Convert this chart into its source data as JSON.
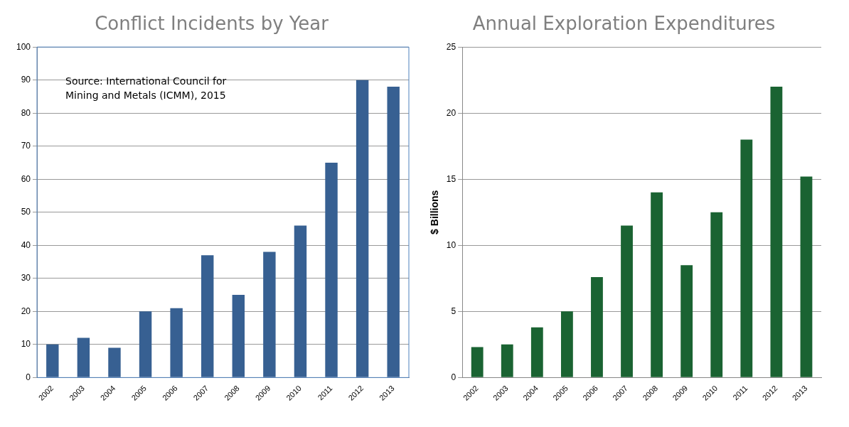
{
  "chart_data": [
    {
      "type": "bar",
      "title": "Conflict Incidents by Year",
      "categories": [
        "2002",
        "2003",
        "2004",
        "2005",
        "2006",
        "2007",
        "2008",
        "2009",
        "2010",
        "2011",
        "2012",
        "2013"
      ],
      "series": [
        {
          "color": "#376092",
          "values": [
            10,
            12,
            9,
            20,
            21,
            37,
            25,
            38,
            46,
            65,
            90,
            88
          ]
        }
      ],
      "ylim": [
        0,
        100
      ],
      "yticks": [
        0,
        10,
        20,
        30,
        40,
        50,
        60,
        70,
        80,
        90,
        100
      ],
      "grid": "y",
      "annotations": [
        "Source: International Council for\nMining and Metals (ICMM), 2015"
      ]
    },
    {
      "type": "bar",
      "title": "Annual Exploration Expenditures",
      "ylabel": "$ Billions",
      "categories": [
        "2002",
        "2003",
        "2004",
        "2005",
        "2006",
        "2007",
        "2008",
        "2009",
        "2010",
        "2011",
        "2012",
        "2013"
      ],
      "series": [
        {
          "color": "#1a6332",
          "values": [
            2.3,
            2.5,
            3.8,
            5.0,
            7.6,
            11.5,
            14.0,
            8.5,
            12.5,
            18.0,
            22.0,
            15.2
          ]
        }
      ],
      "ylim": [
        0,
        25
      ],
      "yticks": [
        0,
        5,
        10,
        15,
        20,
        25
      ],
      "grid": "y"
    }
  ]
}
